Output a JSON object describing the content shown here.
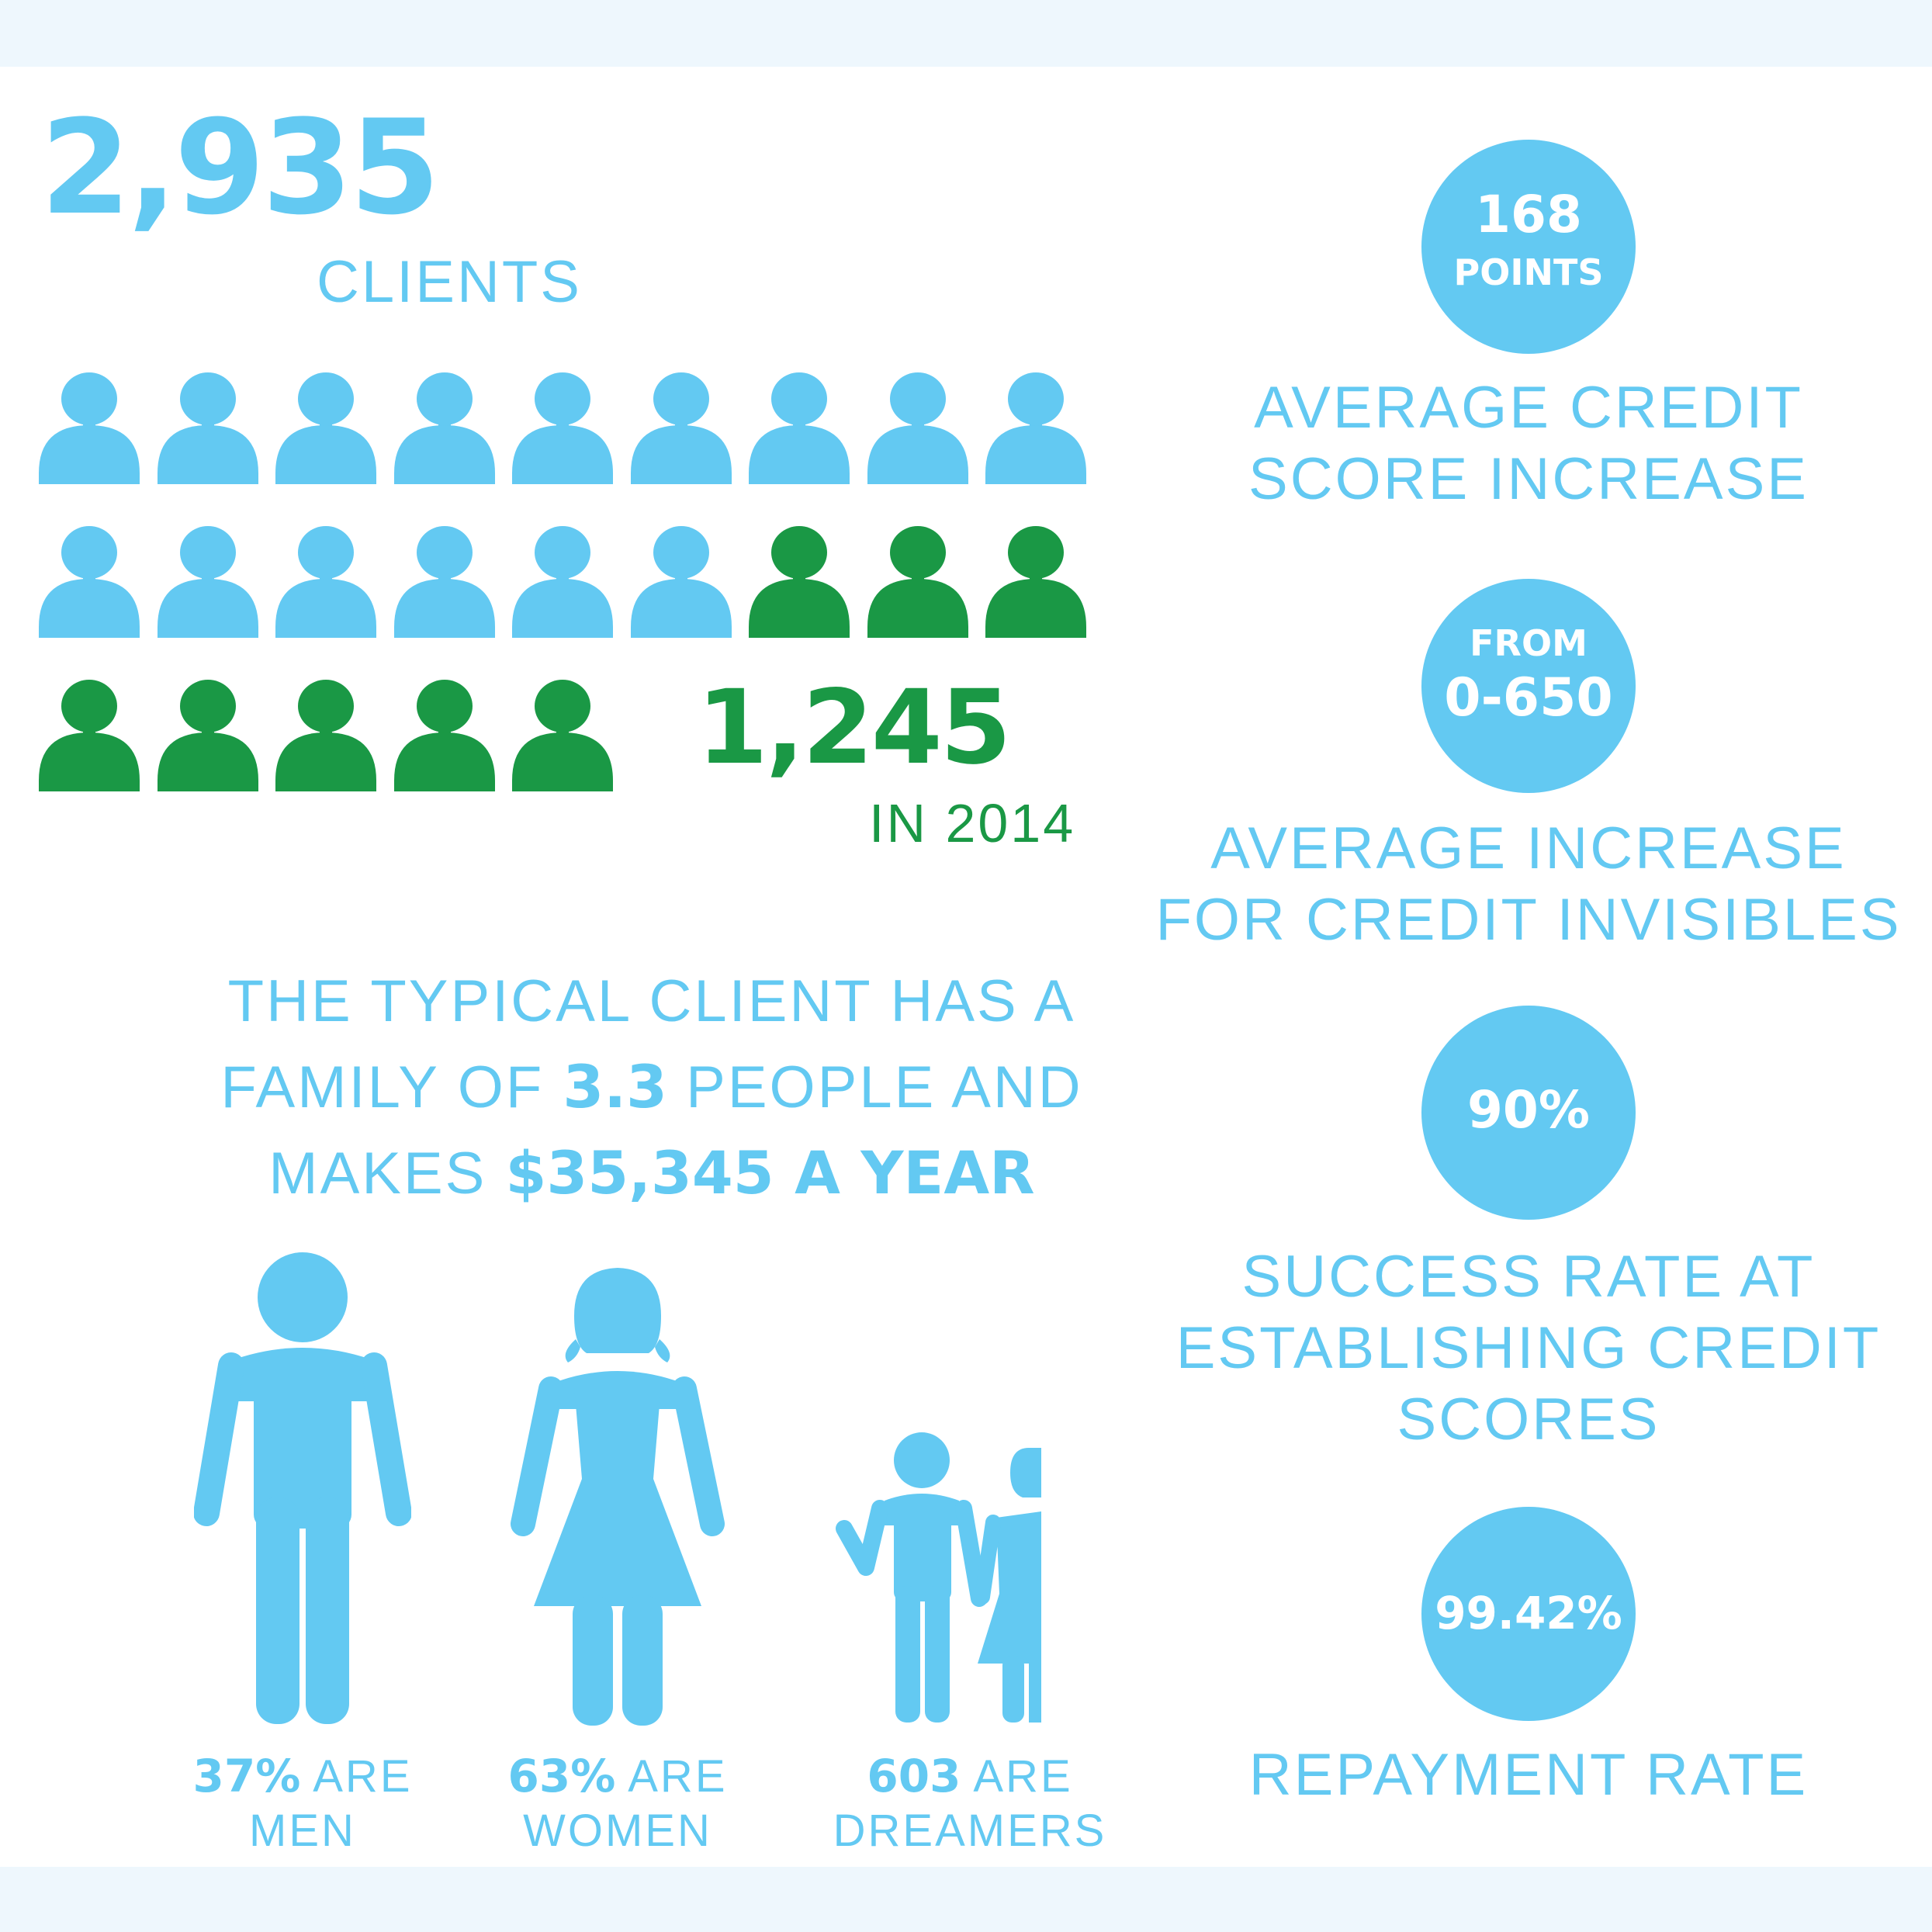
{
  "colors": {
    "blue": "#63c9f2",
    "green": "#1a9845",
    "band": "#eef7fd"
  },
  "clients": {
    "count": "2,935",
    "label": "CLIENTS"
  },
  "people_grid": {
    "total_icons": 23,
    "blue_icons": 15,
    "green_icons": 8,
    "icon": "person-icon"
  },
  "year_2014": {
    "count": "1,245",
    "label": "IN 2014"
  },
  "typical_client": {
    "line1": "THE TYPICAL CLIENT HAS A",
    "line2_prefix": "FAMILY OF ",
    "family_size": "3.3",
    "line2_suffix": " PEOPLE AND",
    "line3_prefix": "MAKES ",
    "income": "$35,345 A YEAR"
  },
  "demographics": [
    {
      "stat": "37%",
      "line1_suffix": " ARE",
      "line2": "MEN",
      "icon": "man-icon"
    },
    {
      "stat": "63%",
      "line1_suffix": " ARE",
      "line2": "WOMEN",
      "icon": "woman-icon"
    },
    {
      "stat": "603",
      "line1_suffix": " ARE",
      "line2": "DREAMERS",
      "icon": "children-icon"
    }
  ],
  "stats": {
    "credit_increase": {
      "value": "168",
      "unit": "POINTS",
      "line1": "AVERAGE CREDIT",
      "line2": "SCORE INCREASE"
    },
    "invisibles": {
      "prefix": "FROM",
      "value": "0-650",
      "line1": "AVERAGE INCREASE",
      "line2": "FOR CREDIT INVISIBLES"
    },
    "success": {
      "value": "90%",
      "line1": "SUCCESS RATE AT",
      "line2": "ESTABLISHING CREDIT",
      "line3": "SCORES"
    },
    "repayment": {
      "value": "99.42%",
      "line1": "REPAYMENT RATE"
    }
  }
}
